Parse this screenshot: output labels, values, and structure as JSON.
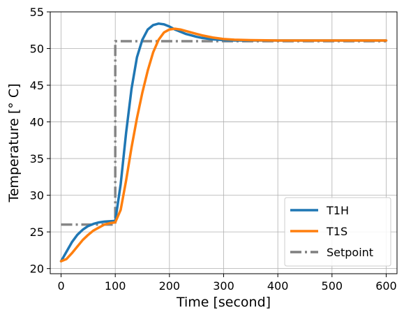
{
  "chart_data": {
    "type": "line",
    "title": "",
    "xlabel": "Time [second]",
    "ylabel": "Temperature [° C]",
    "xlim": [
      -20,
      620
    ],
    "ylim": [
      19.3,
      55
    ],
    "xticks": [
      0,
      100,
      200,
      300,
      400,
      500,
      600
    ],
    "yticks": [
      20,
      25,
      30,
      35,
      40,
      45,
      50,
      55
    ],
    "grid": true,
    "legend_position": "bottom-right",
    "series": [
      {
        "name": "T1H",
        "color": "#1f77b4",
        "style": "solid",
        "x": [
          0,
          10,
          20,
          30,
          40,
          50,
          60,
          70,
          80,
          90,
          100,
          110,
          120,
          130,
          140,
          150,
          160,
          170,
          180,
          190,
          200,
          210,
          220,
          230,
          240,
          250,
          260,
          280,
          300,
          320,
          350,
          400,
          450,
          500,
          550,
          600
        ],
        "y": [
          21.0,
          22.3,
          23.6,
          24.6,
          25.3,
          25.8,
          26.1,
          26.3,
          26.4,
          26.45,
          26.5,
          31.5,
          38.5,
          44.5,
          48.8,
          51.2,
          52.6,
          53.2,
          53.4,
          53.3,
          53.0,
          52.6,
          52.3,
          52.0,
          51.8,
          51.6,
          51.45,
          51.25,
          51.15,
          51.1,
          51.1,
          51.1,
          51.1,
          51.1,
          51.1,
          51.1
        ]
      },
      {
        "name": "T1S",
        "color": "#ff7f0e",
        "style": "solid",
        "x": [
          0,
          10,
          20,
          30,
          40,
          50,
          60,
          70,
          80,
          90,
          100,
          110,
          120,
          130,
          140,
          150,
          160,
          170,
          180,
          190,
          200,
          210,
          220,
          230,
          240,
          250,
          260,
          280,
          300,
          320,
          350,
          400,
          450,
          500,
          550,
          600
        ],
        "y": [
          21.0,
          21.3,
          22.1,
          23.0,
          23.9,
          24.6,
          25.2,
          25.6,
          26.0,
          26.2,
          26.3,
          28.0,
          32.0,
          36.5,
          40.5,
          44.0,
          47.0,
          49.5,
          51.2,
          52.2,
          52.6,
          52.7,
          52.6,
          52.4,
          52.2,
          52.0,
          51.8,
          51.5,
          51.3,
          51.2,
          51.15,
          51.1,
          51.1,
          51.1,
          51.1,
          51.1
        ]
      },
      {
        "name": "Setpoint",
        "color": "#7f7f7f",
        "style": "dashdot",
        "x": [
          0,
          100,
          100,
          600
        ],
        "y": [
          26,
          26,
          51,
          51
        ]
      }
    ]
  }
}
